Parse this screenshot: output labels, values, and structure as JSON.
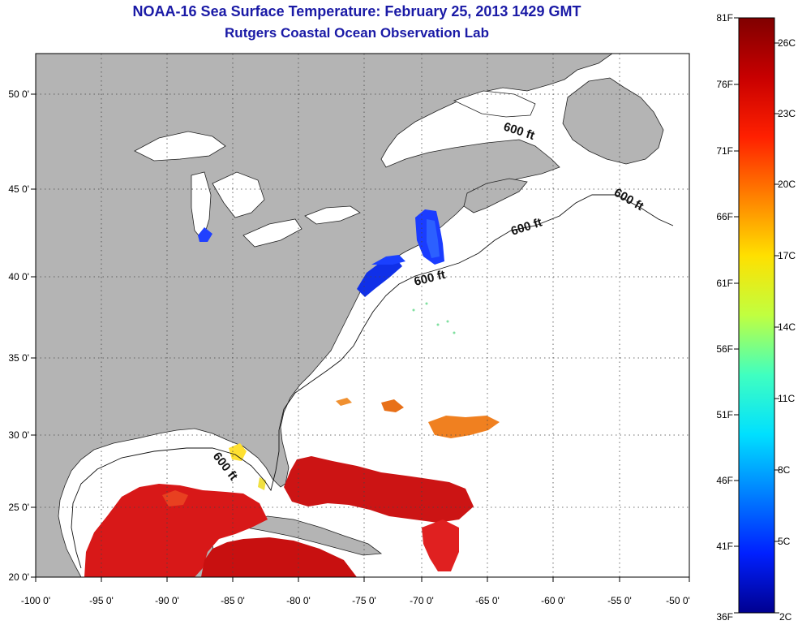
{
  "header": {
    "title": "NOAA-16 Sea Surface Temperature:  February 25, 2013 1429 GMT",
    "subtitle": "Rutgers Coastal Ocean Observation Lab"
  },
  "map": {
    "lon_ticks": [
      "-100 0'",
      "-95 0'",
      "-90 0'",
      "-85 0'",
      "-80 0'",
      "-75 0'",
      "-70 0'",
      "-65 0'",
      "-60 0'",
      "-55 0'",
      "-50 0'"
    ],
    "lat_ticks": [
      "50 0'",
      "45 0'",
      "40 0'",
      "35 0'",
      "30 0'",
      "25 0'",
      "20 0'"
    ],
    "depth_labels": [
      "600 ft",
      "600 ft",
      "600 ft",
      "600 ft",
      "600 ft"
    ],
    "colors": {
      "land": "#b4b4b4",
      "water_nodata": "#ffffff",
      "grid": "#333333"
    }
  },
  "colorbar": {
    "fahrenheit": [
      "81F",
      "76F",
      "71F",
      "66F",
      "61F",
      "56F",
      "51F",
      "46F",
      "41F",
      "36F"
    ],
    "celsius": [
      "26C",
      "23C",
      "20C",
      "17C",
      "14C",
      "11C",
      "8C",
      "5C",
      "2C"
    ],
    "gradient": [
      "#800000",
      "#c80000",
      "#ff2000",
      "#ff8000",
      "#ffe000",
      "#c0ff40",
      "#40ffc0",
      "#00e0ff",
      "#0080ff",
      "#0020ff",
      "#000090"
    ]
  }
}
